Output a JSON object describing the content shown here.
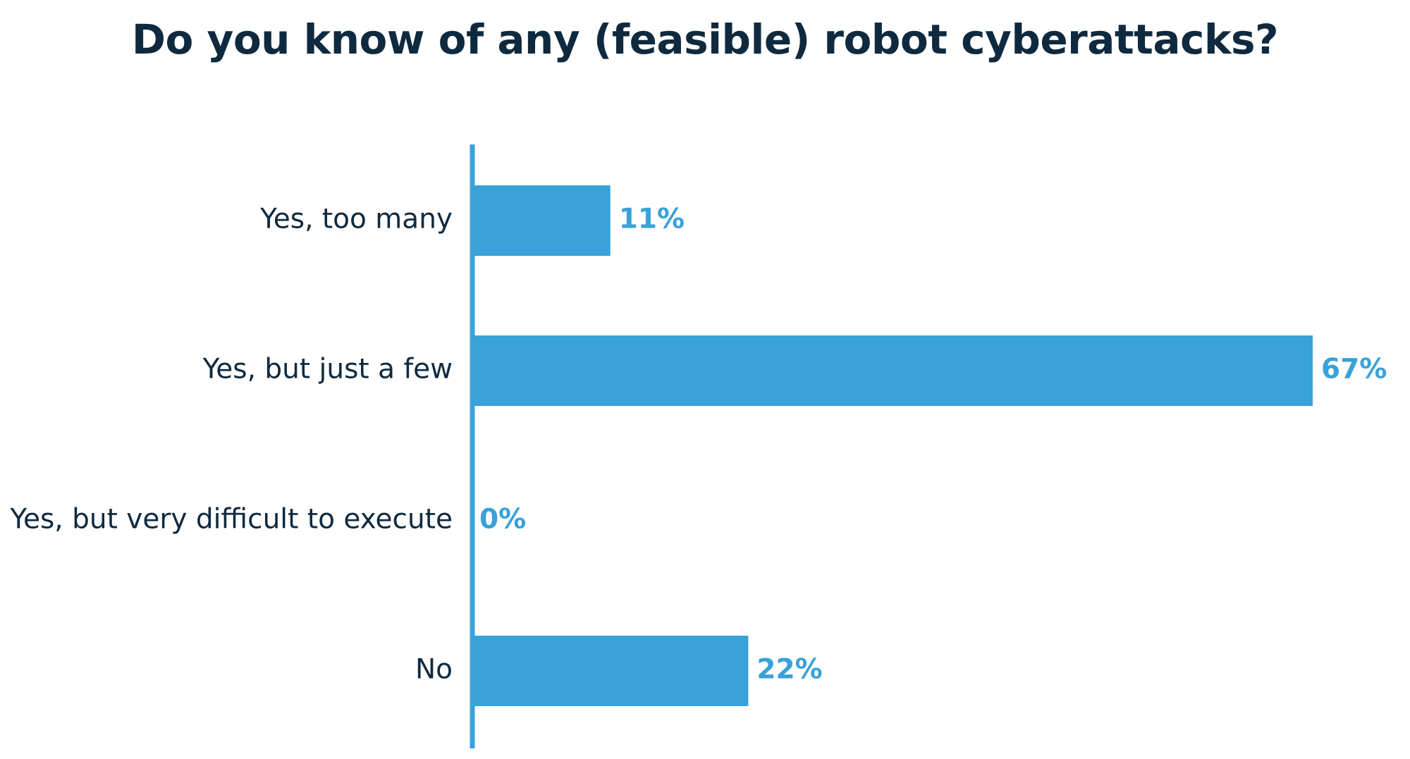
{
  "chart_data": {
    "type": "bar",
    "orientation": "horizontal",
    "title": "Do you know of any (feasible) robot cyberattacks?",
    "xlabel": "",
    "ylabel": "",
    "categories": [
      "Yes, too many",
      "Yes, but just a few",
      "Yes, but very difficult to execute",
      "No"
    ],
    "values": [
      11,
      67,
      0,
      22
    ],
    "value_labels": [
      "11%",
      "67%",
      "0%",
      "22%"
    ],
    "xlim": [
      0,
      67
    ],
    "grid": false,
    "legend": "none",
    "colors": {
      "bar": "#38a2d9",
      "axis": "#38a2d9",
      "value_text": "#38a2d9",
      "text": "#0f2a3f"
    }
  }
}
